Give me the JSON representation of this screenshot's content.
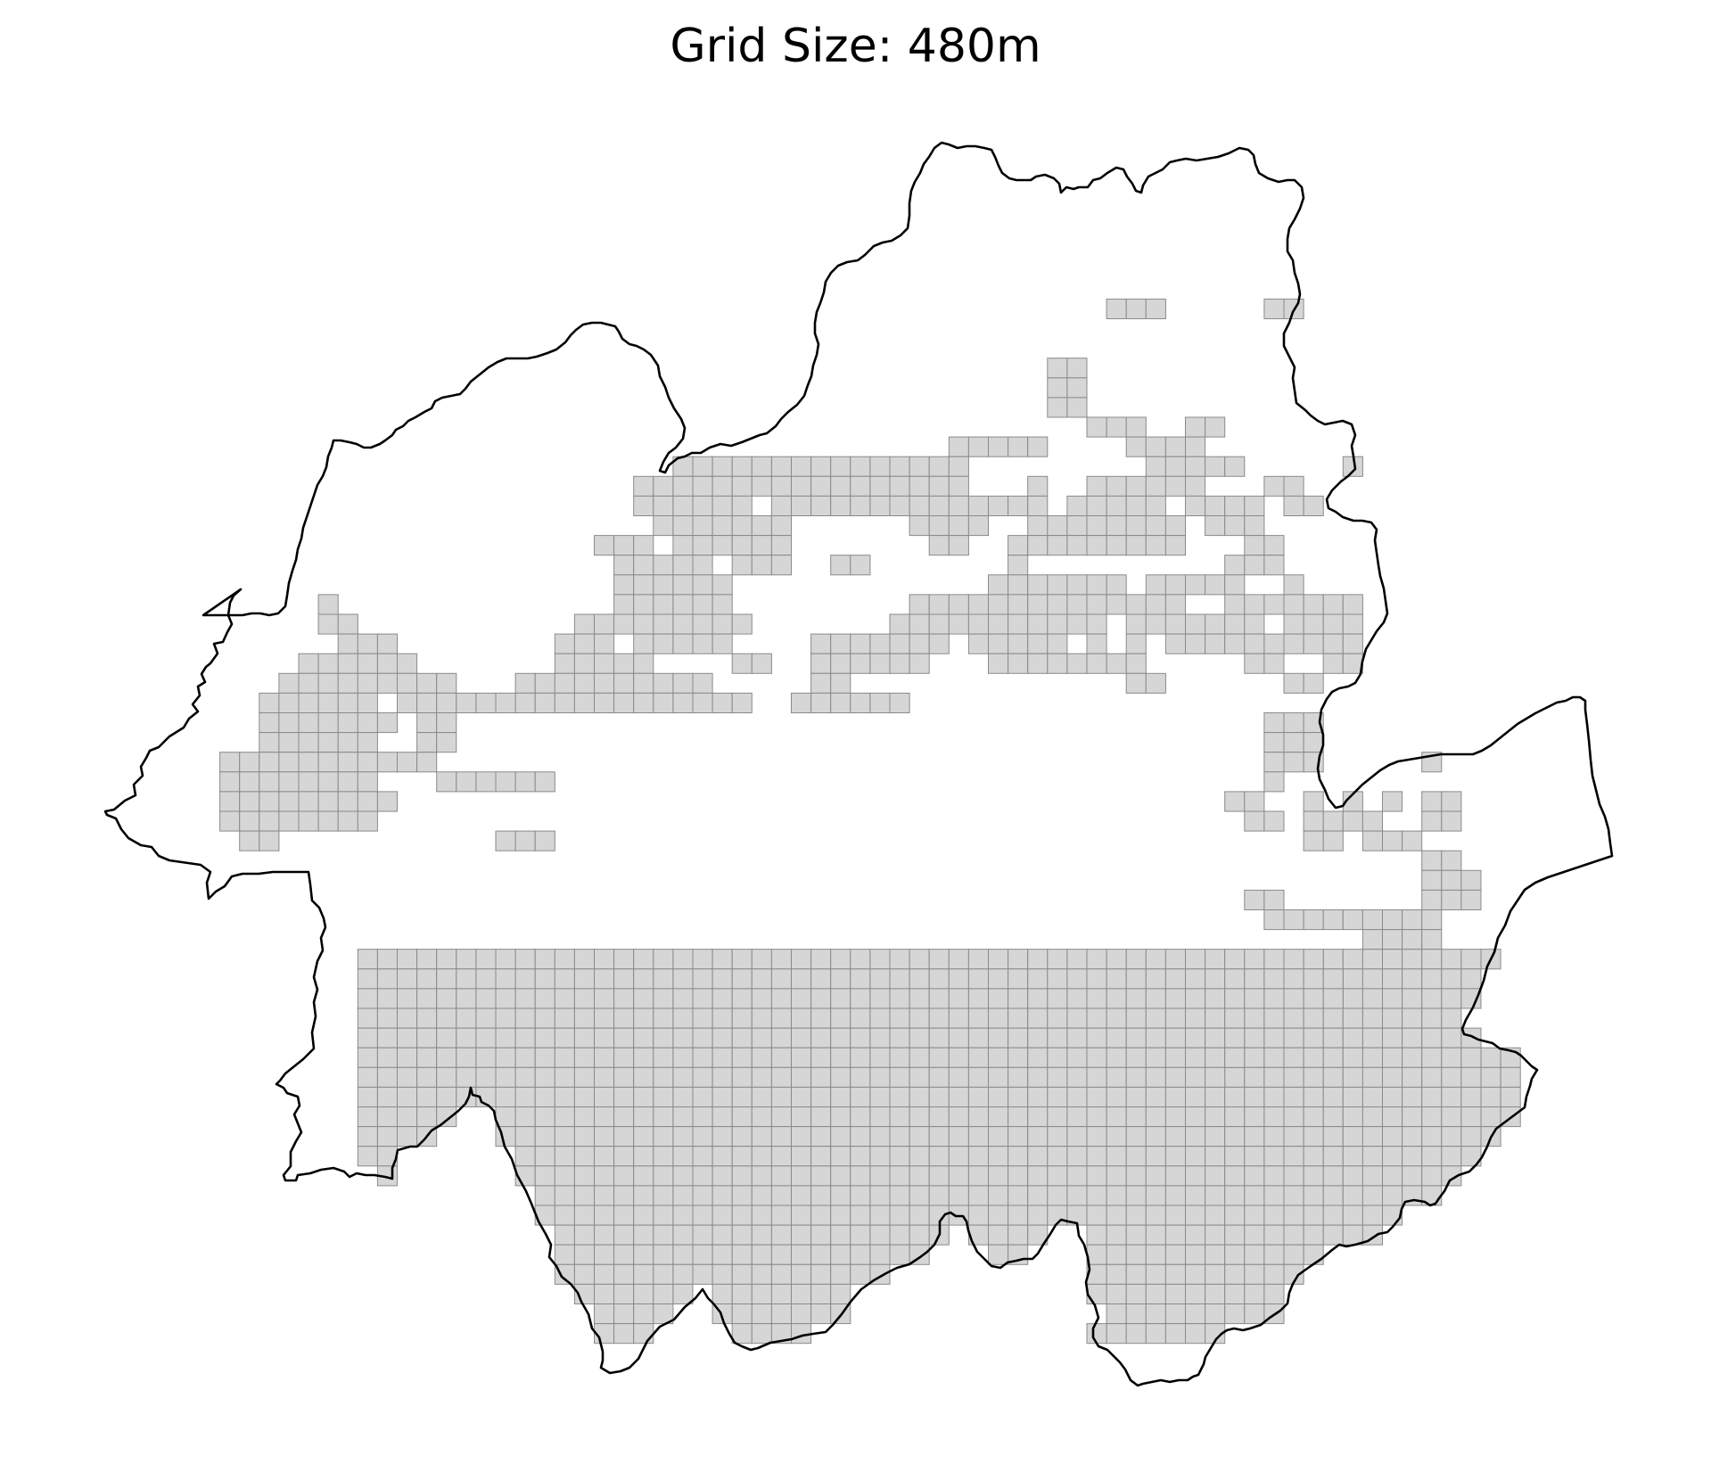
{
  "title": "Grid Size: 480m",
  "style": {
    "cell_fill": "#d6d6d6",
    "cell_stroke": "#8a8a8a",
    "boundary_stroke": "#000000",
    "background": "#ffffff"
  },
  "grid_rows": [
    "........................................................................",
    ".......................................................................",
    ".......................................................................",
    ".......................................................................",
    "...................................................###.....##.........",
    ".......................................................................",
    ".......................................................................",
    "................................................##.....................",
    "................................................##.....................",
    "................................................##.....................",
    "..................................................###..##..............",
    "...........................................#####....####...............",
    ".............................###############.........#####.....######.",
    "...........................#################...#..######...##.....###.",
    "...........................######.##############.#####.####.####...##.",
    "............................#######......####..########.###.........##",
    ".........................###.######.......##..#########...##.......#####",
    "..........................#####.###..##.......#..........###.......####",
    "..........................######.............#######.#####..#......####",
    "...........#..............######.........##############..#######....###",
    "...........##...........#########.......###########.#######.####....##",
    "............###........###.#####....#######.#####.#.#.#############...",
    "..........######.......#####....##..######...########.....##..###...........",
    ".........#########...##########.....##..............##......##..............",
    "........######.##################..######...........................#...",
    "........#######.##.........................................###.....##..",
    "........######..##.........................................###.....##..",
    "......###########..........................................###.....#...",
    "......########...######....................................#...#.......",
    "......#########..........................................##..###.#.##.",
    "......########............................................##.####..##.",
    ".......##...........###......................................##.###.......",
    "...................................................................##....",
    "...................................................................###...",
    "..........................................................##.......###...",
    "...........................................................#########....",
    "................................................................####.....",
    "..............................................................###........",
    "...............................................................##........",
    "...............................................................##........",
    "..........................................................##.............",
    "..........................................................##.............",
    "..........................................................##.............",
    ".........................................................##............."
  ],
  "zones": [
    {
      "rows": [
        37,
        56
      ],
      "cols": [
        13,
        71
      ]
    }
  ]
}
